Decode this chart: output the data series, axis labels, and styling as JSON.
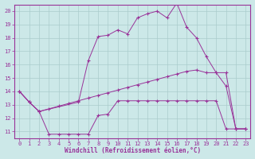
{
  "background_color": "#cce8e8",
  "grid_color": "#aacccc",
  "line_color": "#993399",
  "xlim": [
    -0.5,
    23.5
  ],
  "ylim": [
    10.5,
    20.5
  ],
  "yticks": [
    11,
    12,
    13,
    14,
    15,
    16,
    17,
    18,
    19,
    20
  ],
  "xticks": [
    0,
    1,
    2,
    3,
    4,
    5,
    6,
    7,
    8,
    9,
    10,
    11,
    12,
    13,
    14,
    15,
    16,
    17,
    18,
    19,
    20,
    21,
    22,
    23
  ],
  "xlabel": "Windchill (Refroidissement éolien,°C)",
  "line1_x": [
    0,
    1,
    2,
    3,
    4,
    5,
    6,
    7,
    8,
    9,
    10,
    11,
    12,
    13,
    14,
    15,
    16,
    17,
    18,
    19,
    20,
    21,
    22,
    23
  ],
  "line1_y": [
    14.0,
    13.2,
    12.5,
    10.8,
    10.8,
    10.8,
    10.8,
    10.8,
    12.2,
    12.3,
    13.3,
    13.3,
    13.3,
    13.3,
    13.3,
    13.3,
    13.3,
    13.3,
    13.3,
    13.3,
    13.3,
    11.2,
    11.2,
    11.2
  ],
  "line2_x": [
    0,
    1,
    2,
    6,
    7,
    8,
    9,
    10,
    11,
    12,
    13,
    14,
    15,
    16,
    17,
    18,
    19,
    20,
    21,
    22,
    23
  ],
  "line2_y": [
    14.0,
    13.2,
    12.5,
    13.2,
    16.3,
    18.1,
    18.2,
    18.6,
    18.3,
    19.5,
    19.8,
    20.0,
    19.5,
    20.6,
    18.8,
    18.0,
    16.6,
    15.4,
    14.4,
    11.2,
    11.2
  ],
  "line3_x": [
    0,
    1,
    2,
    3,
    4,
    5,
    6,
    7,
    8,
    9,
    10,
    11,
    12,
    13,
    14,
    15,
    16,
    17,
    18,
    19,
    20,
    21,
    22,
    23
  ],
  "line3_y": [
    14.0,
    13.2,
    12.5,
    12.7,
    12.9,
    13.1,
    13.3,
    13.5,
    13.7,
    13.9,
    14.1,
    14.3,
    14.5,
    14.7,
    14.9,
    15.1,
    15.3,
    15.5,
    15.6,
    15.4,
    15.4,
    15.4,
    11.2,
    11.2
  ]
}
